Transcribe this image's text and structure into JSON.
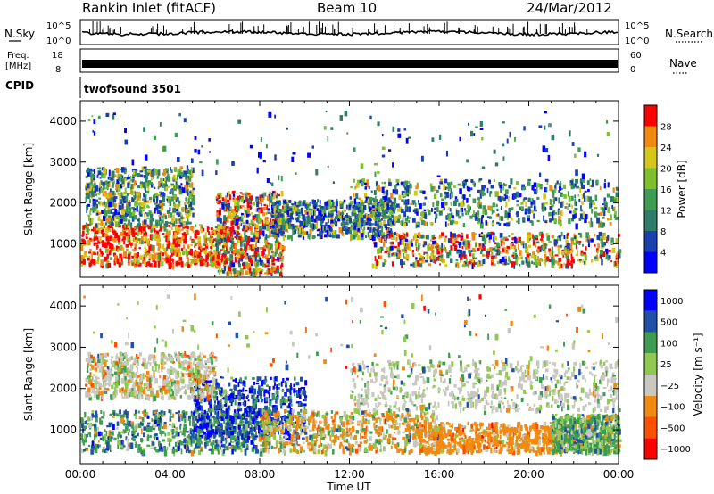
{
  "header": {
    "station": "Rankin Inlet (fitACF)",
    "beam": "Beam 10",
    "date": "24/Mar/2012"
  },
  "aux": {
    "nsky_label": "N.Sky",
    "nsearch_label": "N.Search",
    "nsky_ticks": [
      "10^5",
      "10^0"
    ],
    "freq_label_line1": "Freq.",
    "freq_label_line2": "[MHz]",
    "freq_ticks": [
      "18",
      "8"
    ],
    "nave_label": "Nave",
    "nave_ticks": [
      "60",
      "0"
    ],
    "cpid_label": "CPID",
    "cpid_text": "twofsound 3501"
  },
  "colors": {
    "power": [
      "#0000ff",
      "#1a3fb0",
      "#2e7d6b",
      "#3f9d52",
      "#7fbf30",
      "#d4c61a",
      "#f08a10",
      "#ff0000"
    ],
    "velocity": [
      "#ff0000",
      "#ff5000",
      "#f08a10",
      "#c8c8c0",
      "#90c850",
      "#3f9d52",
      "#2050a8",
      "#0000ff"
    ]
  },
  "chart_data": [
    {
      "type": "heatmap",
      "name": "power",
      "xlabel": "Time UT",
      "ylabel": "Slant Range [km]",
      "x_ticks": [
        "00:00",
        "04:00",
        "08:00",
        "12:00",
        "16:00",
        "20:00",
        "00:00"
      ],
      "xlim_hours": [
        0,
        24
      ],
      "ylim_km": [
        180,
        4500
      ],
      "y_ticks": [
        1000,
        2000,
        3000,
        4000
      ],
      "colorbar_label": "Power [dB]",
      "colorbar_ticks": [
        "4",
        "8",
        "12",
        "16",
        "20",
        "24",
        "28"
      ],
      "colorbar_range": [
        0,
        32
      ]
    },
    {
      "type": "heatmap",
      "name": "velocity",
      "xlabel": "Time UT",
      "ylabel": "Slant Range [km]",
      "x_ticks": [
        "00:00",
        "04:00",
        "08:00",
        "12:00",
        "16:00",
        "20:00",
        "00:00"
      ],
      "xlim_hours": [
        0,
        24
      ],
      "ylim_km": [
        180,
        4500
      ],
      "y_ticks": [
        1000,
        2000,
        3000,
        4000
      ],
      "colorbar_label": "Velocity [m s⁻¹]",
      "colorbar_ticks": [
        "1000",
        "500",
        "100",
        "25",
        "−25",
        "−100",
        "−500",
        "−1000"
      ]
    }
  ]
}
